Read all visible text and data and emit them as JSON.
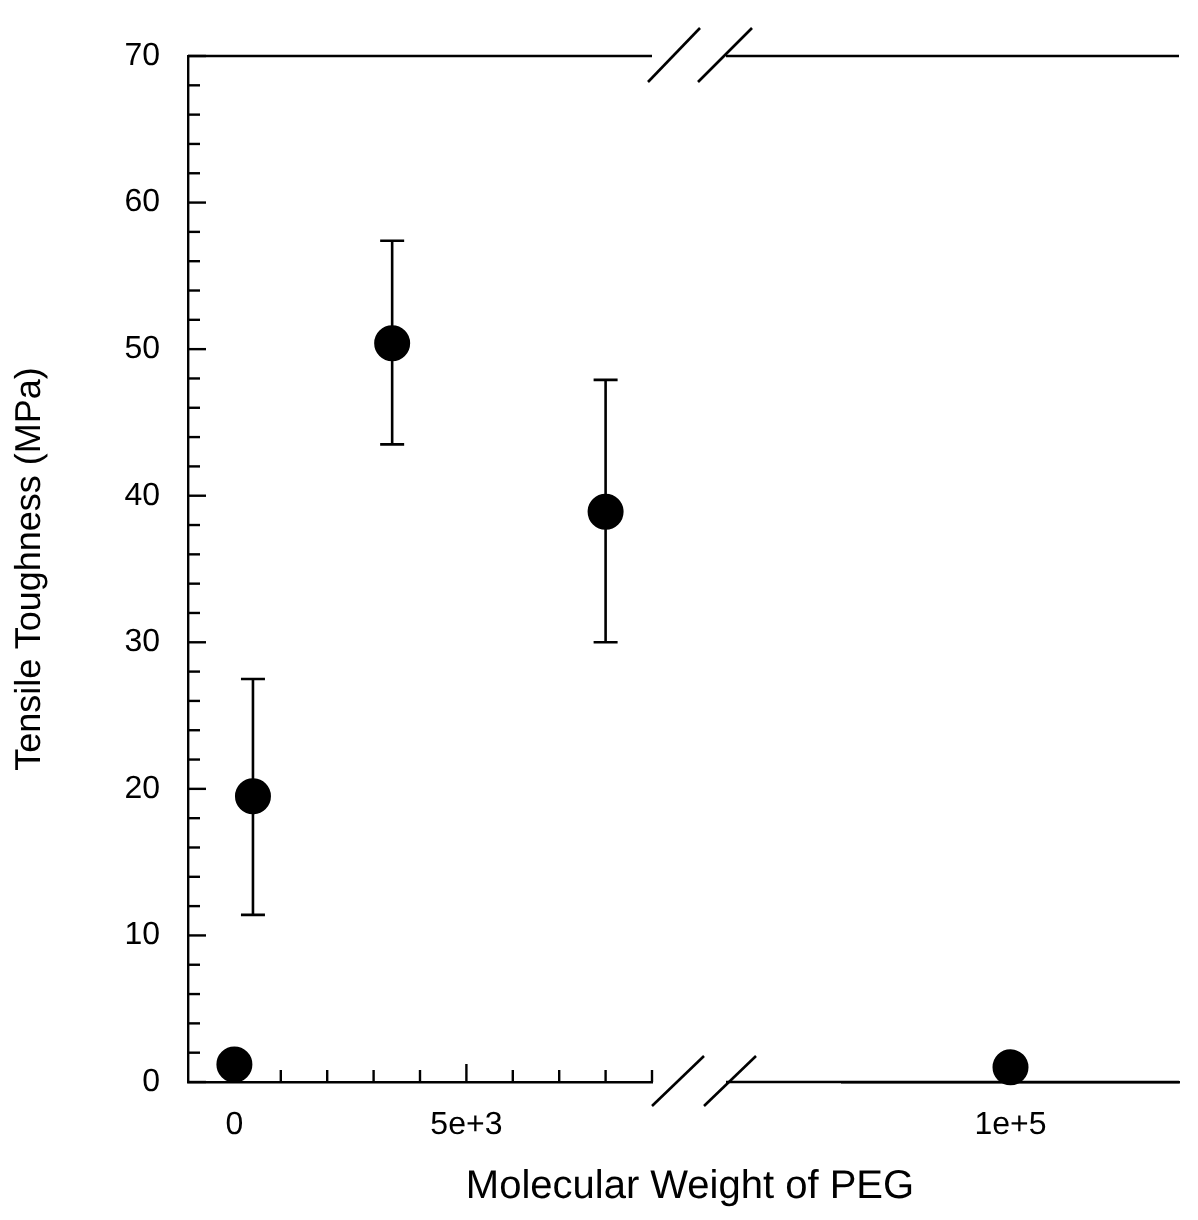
{
  "chart_data": [
    {
      "type": "scatter",
      "xlabel": "Molecular Weight of PEG",
      "ylabel": "Tensile Toughness (MPa)",
      "x": [
        0,
        400,
        3400,
        8000
      ],
      "series": [
        {
          "color": "#000000",
          "values": [
            1.2,
            19.5,
            50.4,
            38.9
          ],
          "errors": [
            null,
            [
              11.4,
              27.5
            ],
            [
              43.5,
              57.4
            ],
            [
              30.0,
              47.9
            ]
          ]
        }
      ],
      "marker": "circle",
      "xlim": [
        -1000,
        9000
      ],
      "xticks": [
        {
          "value": 0,
          "label": "0"
        },
        {
          "value": 1000,
          "label": null
        },
        {
          "value": 2000,
          "label": null
        },
        {
          "value": 3000,
          "label": null
        },
        {
          "value": 4000,
          "label": null
        },
        {
          "value": 5000,
          "label": "5e+3"
        },
        {
          "value": 6000,
          "label": null
        },
        {
          "value": 7000,
          "label": null
        },
        {
          "value": 8000,
          "label": null
        },
        {
          "value": 9000,
          "label": null
        }
      ],
      "ylim": [
        0,
        70
      ],
      "yticks": [
        0,
        {
          "value": 2,
          "label": null
        },
        {
          "value": 4,
          "label": null
        },
        {
          "value": 6,
          "label": null
        },
        {
          "value": 8,
          "label": null
        },
        10,
        {
          "value": 12,
          "label": null
        },
        {
          "value": 14,
          "label": null
        },
        {
          "value": 16,
          "label": null
        },
        {
          "value": 18,
          "label": null
        },
        20,
        {
          "value": 22,
          "label": null
        },
        {
          "value": 24,
          "label": null
        },
        {
          "value": 26,
          "label": null
        },
        {
          "value": 28,
          "label": null
        },
        30,
        {
          "value": 32,
          "label": null
        },
        {
          "value": 34,
          "label": null
        },
        {
          "value": 36,
          "label": null
        },
        {
          "value": 38,
          "label": null
        },
        40,
        {
          "value": 42,
          "label": null
        },
        {
          "value": 44,
          "label": null
        },
        {
          "value": 46,
          "label": null
        },
        {
          "value": 48,
          "label": null
        },
        50,
        {
          "value": 52,
          "label": null
        },
        {
          "value": 54,
          "label": null
        },
        {
          "value": 56,
          "label": null
        },
        {
          "value": 58,
          "label": null
        },
        60,
        {
          "value": 62,
          "label": null
        },
        {
          "value": 64,
          "label": null
        },
        {
          "value": 66,
          "label": null
        },
        {
          "value": 68,
          "label": null
        },
        70
      ]
    },
    {
      "type": "scatter",
      "categories": [
        "1e+5"
      ],
      "series": [
        {
          "color": "#000000",
          "values": [
            1.0
          ]
        }
      ],
      "marker": "circle",
      "ylim": [
        0,
        70
      ],
      "tick_labels": "x"
    }
  ]
}
